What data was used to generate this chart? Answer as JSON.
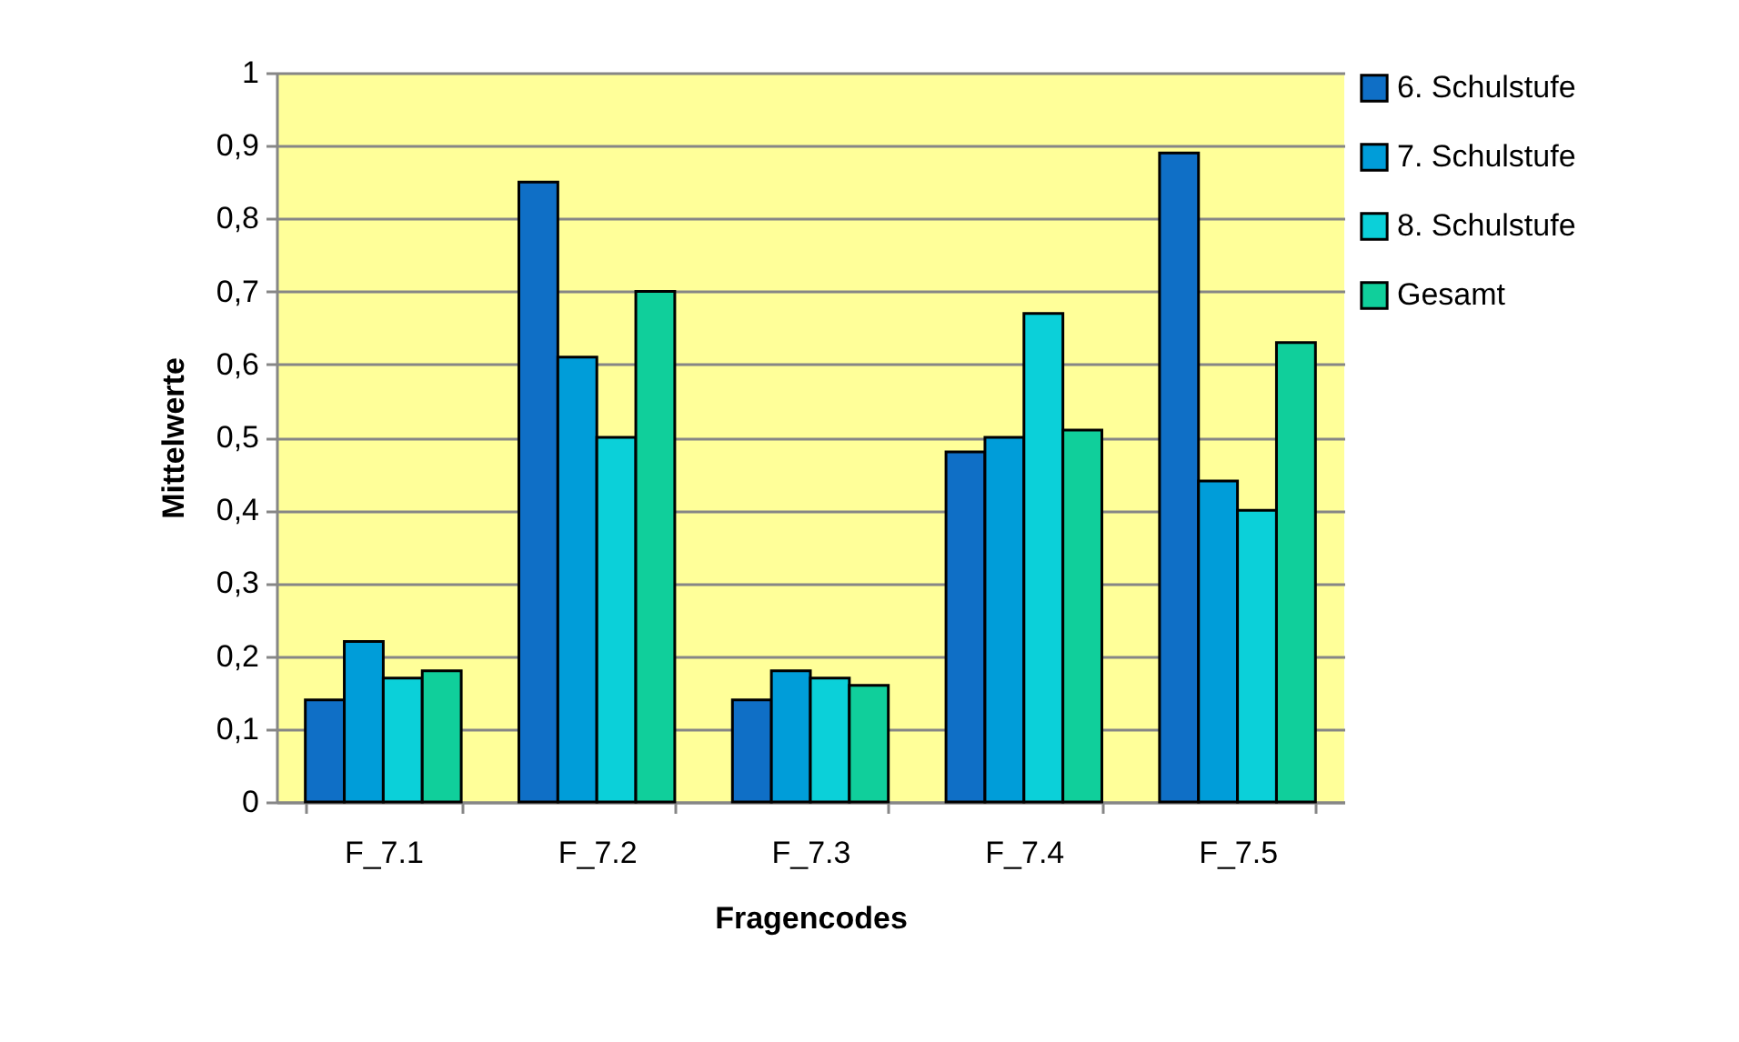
{
  "chart_data": {
    "type": "bar",
    "xlabel": "Fragencodes",
    "ylabel": "Mittelwerte",
    "categories": [
      "F_7.1",
      "F_7.2",
      "F_7.3",
      "F_7.4",
      "F_7.5"
    ],
    "series": [
      {
        "name": "6. Schulstufe",
        "color": "#0f6fc6",
        "values": [
          0.14,
          0.85,
          0.14,
          0.48,
          0.89
        ]
      },
      {
        "name": "7. Schulstufe",
        "color": "#009dd9",
        "values": [
          0.22,
          0.61,
          0.18,
          0.5,
          0.44
        ]
      },
      {
        "name": "8. Schulstufe",
        "color": "#0bd0d9",
        "values": [
          0.17,
          0.5,
          0.17,
          0.67,
          0.4
        ]
      },
      {
        "name": "Gesamt",
        "color": "#10cf9b",
        "values": [
          0.18,
          0.7,
          0.16,
          0.51,
          0.63
        ]
      }
    ],
    "ylim": [
      0,
      1
    ],
    "yticks": [
      0,
      {
        "value": 0.1,
        "label": "0,1"
      },
      {
        "value": 0.2,
        "label": "0,2"
      },
      {
        "value": 0.3,
        "label": "0,3"
      },
      {
        "value": 0.4,
        "label": "0,4"
      },
      {
        "value": 0.5,
        "label": "0,5"
      },
      {
        "value": 0.6,
        "label": "0,6"
      },
      {
        "value": 0.7,
        "label": "0,7"
      },
      {
        "value": 0.8,
        "label": "0,8"
      },
      {
        "value": 0.9,
        "label": "0,9"
      },
      1
    ],
    "grid": "y",
    "legend": "right"
  }
}
